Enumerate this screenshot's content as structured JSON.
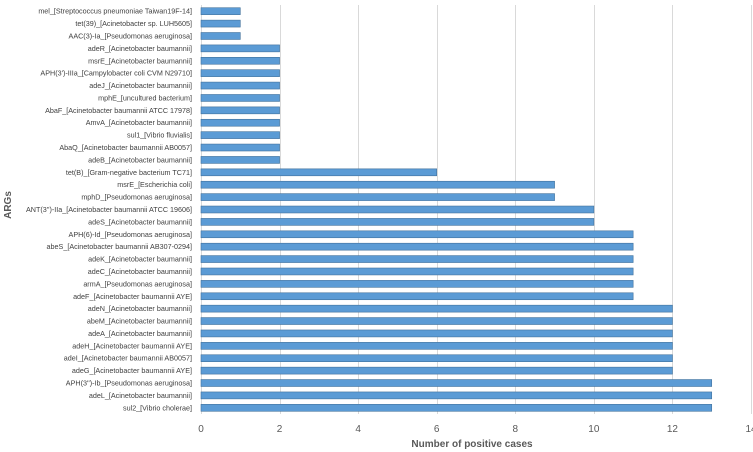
{
  "chart_data": {
    "type": "bar",
    "orientation": "horizontal",
    "xlabel": "Number of positive cases",
    "ylabel": "ARGs",
    "xlim": [
      0,
      14
    ],
    "xticks": [
      0,
      2,
      4,
      6,
      8,
      10,
      12,
      14
    ],
    "grid": true,
    "bar_color": "#5b9bd5",
    "categories": [
      "mel_[Streptococcus pneumoniae Taiwan19F-14]",
      "tet(39)_[Acinetobacter sp. LUH5605]",
      "AAC(3)-Ia_[Pseudomonas aeruginosa]",
      "adeR_[Acinetobacter baumannii]",
      "msrE_[Acinetobacter baumannii]",
      "APH(3')-IIIa_[Campylobacter coli CVM N29710]",
      "adeJ_[Acinetobacter baumannii]",
      "mphE_[uncultured bacterium]",
      "AbaF_[Acinetobacter baumannii ATCC 17978]",
      "AmvA_[Acinetobacter baumannii]",
      "sul1_[Vibrio fluvialis]",
      "AbaQ_[Acinetobacter baumannii AB0057]",
      "adeB_[Acinetobacter baumannii]",
      "tet(B)_[Gram-negative bacterium TC71]",
      "msrE_[Escherichia coli]",
      "mphD_[Pseudomonas aeruginosa]",
      "ANT(3'')-IIa_[Acinetobacter baumannii ATCC 19606]",
      "adeS_[Acinetobacter baumannii]",
      "APH(6)-Id_[Pseudomonas aeruginosa]",
      "abeS_[Acinetobacter baumannii AB307-0294]",
      "adeK_[Acinetobacter baumannii]",
      "adeC_[Acinetobacter baumannii]",
      "armA_[Pseudomonas aeruginosa]",
      "adeF_[Acinetobacter baumannii AYE]",
      "adeN_[Acinetobacter baumannii]",
      "abeM_[Acinetobacter baumannii]",
      "adeA_[Acinetobacter baumannii]",
      "adeH_[Acinetobacter baumannii AYE]",
      "adeI_[Acinetobacter baumannii AB0057]",
      "adeG_[Acinetobacter baumannii AYE]",
      "APH(3'')-Ib_[Pseudomonas aeruginosa]",
      "adeL_[Acinetobacter baumannii]",
      "sul2_[Vibrio cholerae]"
    ],
    "values": [
      1,
      1,
      1,
      2,
      2,
      2,
      2,
      2,
      2,
      2,
      2,
      2,
      2,
      6,
      9,
      9,
      10,
      10,
      11,
      11,
      11,
      11,
      11,
      11,
      12,
      12,
      12,
      12,
      12,
      12,
      13,
      13,
      13
    ]
  }
}
